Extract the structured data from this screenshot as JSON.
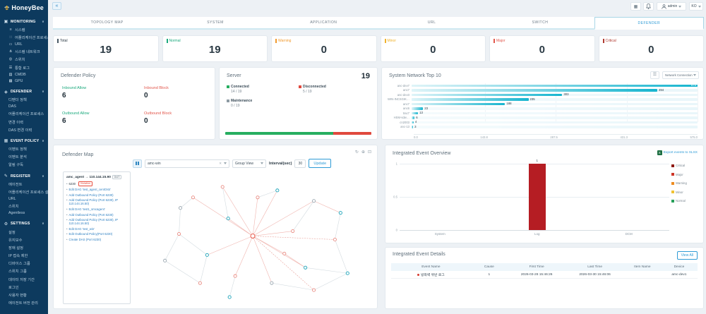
{
  "app": {
    "name": "HoneyBee"
  },
  "header": {
    "collapse_glyph": "«",
    "grid_icon_glyph": "▦",
    "user": "admin",
    "lang": "KO"
  },
  "tabs": [
    {
      "label": "TOPOLOGY MAP",
      "active": false
    },
    {
      "label": "SYSTEM",
      "active": false
    },
    {
      "label": "APPLICATION",
      "active": false
    },
    {
      "label": "URL",
      "active": false
    },
    {
      "label": "SWITCH",
      "active": false
    },
    {
      "label": "DEFENDER",
      "active": true
    }
  ],
  "stats": [
    {
      "label": "Total",
      "value": "19",
      "color": "#4a5a66"
    },
    {
      "label": "Normal",
      "value": "19",
      "color": "#1ba97d"
    },
    {
      "label": "Warning",
      "value": "0",
      "color": "#f09a2e"
    },
    {
      "label": "Minor",
      "value": "0",
      "color": "#f0b32e"
    },
    {
      "label": "Major",
      "value": "0",
      "color": "#e2574c"
    },
    {
      "label": "Critical",
      "value": "0",
      "color": "#b03a30"
    }
  ],
  "sidebar": {
    "caret_glyph": "∨",
    "sections": [
      {
        "label": "MONITORING",
        "icon": "monitoring-icon",
        "glyph": "▣",
        "items": [
          {
            "label": "시스템",
            "glyph": "≡"
          },
          {
            "label": "어플리케이션 프로세스",
            "glyph": "∷"
          },
          {
            "label": "URL",
            "glyph": "▭"
          },
          {
            "label": "시스템 네트워크",
            "glyph": "⋔"
          },
          {
            "label": "스위치",
            "glyph": "◎"
          },
          {
            "label": "통합 로그",
            "glyph": "☰"
          },
          {
            "label": "CMDB",
            "glyph": "▤"
          },
          {
            "label": "GPU",
            "glyph": "▦"
          }
        ]
      },
      {
        "label": "DEFENDER",
        "icon": "shield-icon",
        "glyph": "◈",
        "items": [
          {
            "label": "디펜더 정책"
          },
          {
            "label": "DAS"
          },
          {
            "label": "어플리케이션 프로세스"
          },
          {
            "label": "변경 이력"
          },
          {
            "label": "DAS 변경 이력"
          }
        ]
      },
      {
        "label": "EVENT POLICY",
        "icon": "event-policy-icon",
        "glyph": "▦",
        "items": [
          {
            "label": "이벤트 정책"
          },
          {
            "label": "이벤트 분석"
          },
          {
            "label": "알림 구독"
          }
        ]
      },
      {
        "label": "REGISTER",
        "icon": "register-icon",
        "glyph": "✎",
        "items": [
          {
            "label": "에이전트"
          },
          {
            "label": "어플리케이션 프로세스 설정"
          },
          {
            "label": "URL"
          },
          {
            "label": "스위치"
          },
          {
            "label": "Agentless"
          }
        ]
      },
      {
        "label": "SETTINGS",
        "icon": "gear-icon",
        "glyph": "⚙",
        "items": [
          {
            "label": "설정"
          },
          {
            "label": "유지보수"
          },
          {
            "label": "장애 설정"
          },
          {
            "label": "IP 접속 제한"
          },
          {
            "label": "디바이스 그룹"
          },
          {
            "label": "스위치 그룹"
          },
          {
            "label": "데이터 저장 기간"
          },
          {
            "label": "로그인"
          },
          {
            "label": "사용자 현황"
          },
          {
            "label": "에이전트 버전 관리"
          }
        ]
      }
    ]
  },
  "panels": {
    "defender_policy": {
      "title": "Defender Policy",
      "metrics": [
        {
          "label": "Inbound Allow",
          "value": "6",
          "color": "#1ba97d"
        },
        {
          "label": "Inbound Block",
          "value": "0",
          "color": "#e2574c"
        },
        {
          "label": "Outbound Allow",
          "value": "6",
          "color": "#1ba97d"
        },
        {
          "label": "Outbound Block",
          "value": "0",
          "color": "#e2574c"
        }
      ]
    },
    "server": {
      "title": "Server",
      "total": "19",
      "legend": [
        {
          "label": "Connected",
          "value": "14 / 19",
          "color": "#27ae60"
        },
        {
          "label": "Disconnected",
          "value": "5 / 19",
          "color": "#e0493e"
        },
        {
          "label": "Maintenance",
          "value": "0 / 19",
          "color": "#8d9aa3"
        }
      ],
      "bar_segments": [
        {
          "pct": 73.7,
          "color": "#27ae60"
        },
        {
          "pct": 26.3,
          "color": "#e0493e"
        }
      ]
    },
    "network_top10": {
      "dropdown_value": "Network Connection",
      "menu_icon_glyph": "☰"
    },
    "defender_map": {
      "title": "Defender Map",
      "icon_glyphs": [
        "↻",
        "⊕",
        "⊡"
      ],
      "select_value": "amc-win",
      "clear_glyph": "✕",
      "group_view": "Group View",
      "interval_label": "Interval(sec)",
      "interval_value": "30",
      "update_label": "Update",
      "agent_box": {
        "title": "amc_agent → 110.144.15.90",
        "badge": "OUT",
        "items": [
          {
            "text": "6230",
            "badge": "Violation"
          },
          {
            "text": "Edit DAG 'test_agent_centOs5'"
          },
          {
            "text": "Add Outbound Policy (Port 6230)"
          },
          {
            "text": "Add Outbound Policy (Port 6230), IP 110.144.16.50)"
          },
          {
            "text": "Edit DAG 'test1_smcagent'"
          },
          {
            "text": "Add Outbound Policy (Port 6230)"
          },
          {
            "text": "Add Outbound Policy (Port 6230), IP 110.144.16.50)"
          },
          {
            "text": "Edit DAG 'test_win'"
          },
          {
            "text": "Edit Outbound Policy(Port 6230)"
          },
          {
            "text": "Create DAS (Port 6230)"
          }
        ]
      }
    },
    "event_overview": {
      "export_label": "Export events to XLSX"
    },
    "event_details": {
      "title": "Integrated Event Details",
      "view_all": "View All",
      "columns": [
        "Event Name",
        "Cause",
        "First Time",
        "Last Time",
        "Item Name",
        "Device"
      ],
      "rows": [
        {
          "severity_color": "#d63a2f",
          "event_name": "방화벽 위반 로그",
          "cause": "1",
          "first_time": "2026-03-28 15:46:26",
          "last_time": "2026-03-30 15:46:06",
          "item_name": "",
          "device": "amc-dev1"
        }
      ]
    }
  },
  "chart_data": [
    {
      "type": "bar",
      "orientation": "horizontal",
      "title": "System Network Top 10",
      "categories": [
        "anc-dev7",
        "anc7",
        "anc-dev3",
        "WIN-INCSGIK…",
        "anc7",
        "anc6",
        "trac7",
        "HSM-sdw…",
        "cn2003",
        "anc-13"
      ],
      "values": [
        575,
        494,
        303,
        235,
        188,
        23,
        13,
        6,
        4,
        3
      ],
      "xlim": [
        0,
        575
      ],
      "x_ticks": [
        "0.0",
        "143.8",
        "287.5",
        "431.3",
        "575.0"
      ],
      "unit": "Network Connection",
      "bar_color_start": "#dff4f8",
      "bar_color_end": "#16b5cf",
      "legend": "none"
    },
    {
      "type": "bar",
      "title": "Integrated Event Overview",
      "categories": [
        "System",
        "Log",
        "DCM"
      ],
      "values": [
        0,
        1,
        0
      ],
      "category_positions_pct": [
        15,
        51,
        85
      ],
      "bar_color": "#b51d23",
      "ylim": [
        0,
        1
      ],
      "y_ticks": [
        "1",
        "0.5",
        "0"
      ],
      "legend_position": "right",
      "legend": [
        {
          "label": "Critical",
          "color": "#8e1a10"
        },
        {
          "label": "Major",
          "color": "#cd3527"
        },
        {
          "label": "Warning",
          "color": "#ee8c21"
        },
        {
          "label": "Minor",
          "color": "#f1c232"
        },
        {
          "label": "Normal",
          "color": "#27a05a"
        }
      ]
    },
    {
      "type": "stacked-bar",
      "title": "Server",
      "total": 19,
      "segments": [
        {
          "label": "Connected",
          "value": 14,
          "color": "#27ae60"
        },
        {
          "label": "Disconnected",
          "value": 5,
          "color": "#e0493e"
        },
        {
          "label": "Maintenance",
          "value": 0,
          "color": "#8d9aa3"
        }
      ]
    }
  ]
}
